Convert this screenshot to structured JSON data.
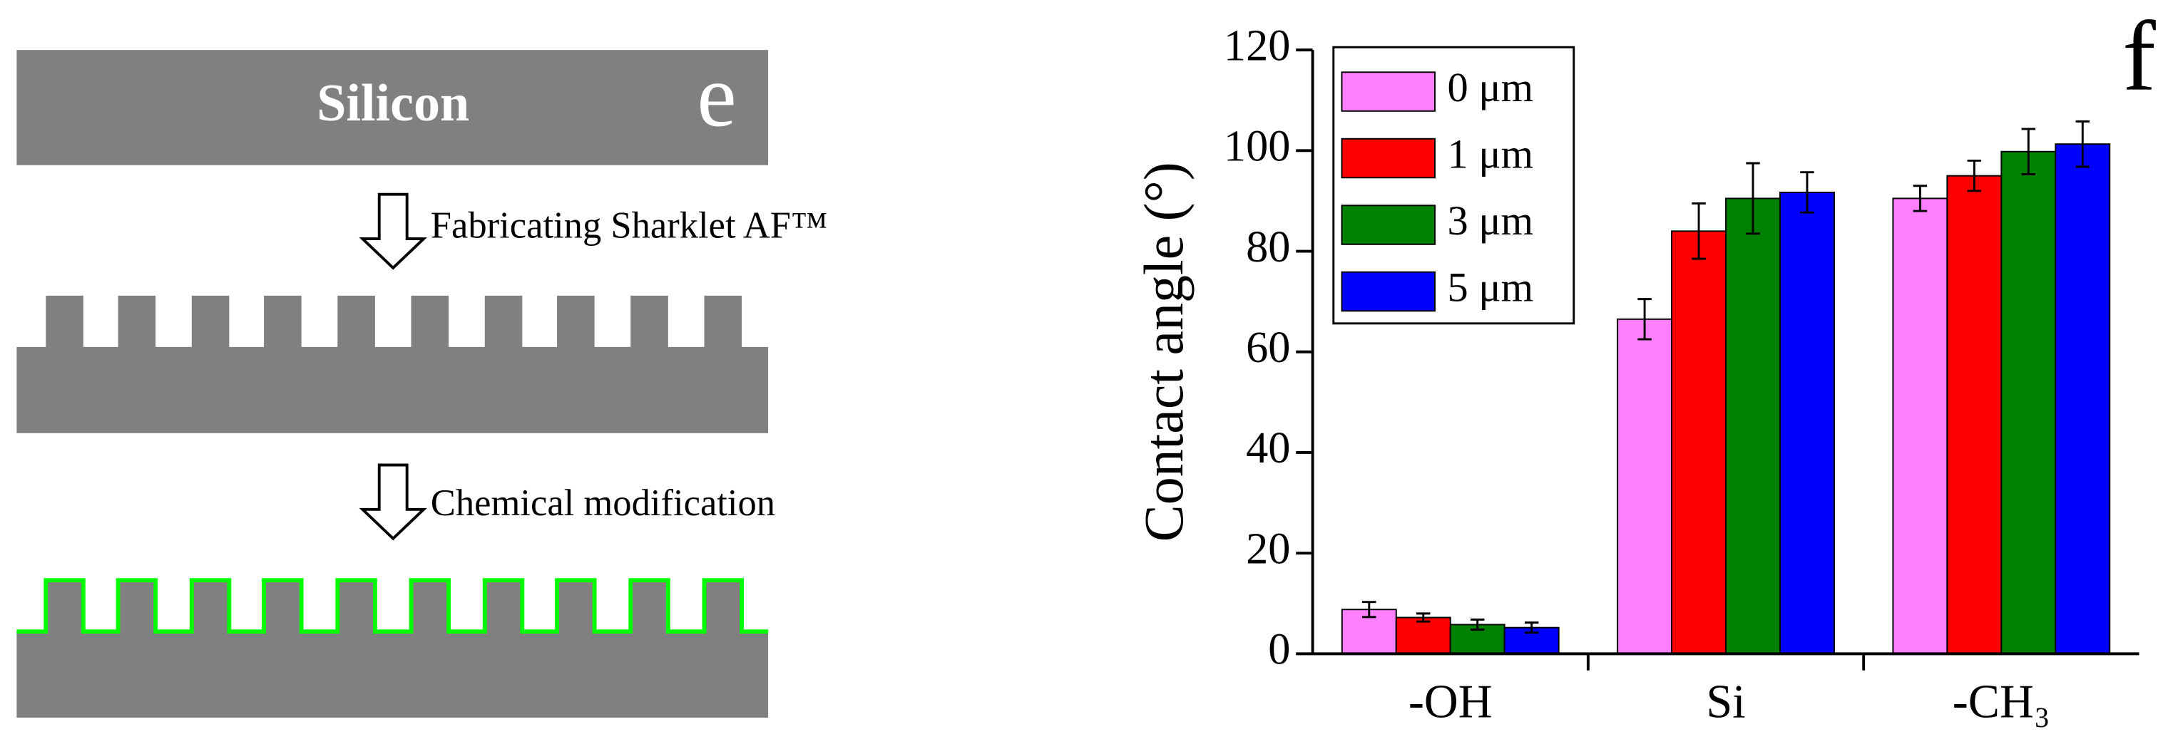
{
  "diagram": {
    "substrate_label": "Silicon",
    "panel_label": "e",
    "steps": [
      "Fabricating Sharklet AF™",
      "Chemical modification"
    ]
  },
  "chart_data": {
    "type": "bar",
    "annotations": [
      "f"
    ],
    "y_label": "Contact angle (°)",
    "categories": [
      "-OH",
      "Si",
      "-CH₃"
    ],
    "series": [
      {
        "name": "0 μm",
        "color": "#ff80ff",
        "values": [
          8.8,
          66.5,
          90.5
        ],
        "errors": [
          1.5,
          4,
          2.5
        ]
      },
      {
        "name": "1 μm",
        "color": "#ff0000",
        "values": [
          7.2,
          84,
          95
        ],
        "errors": [
          0.8,
          5.5,
          3
        ]
      },
      {
        "name": "3 μm",
        "color": "#008000",
        "values": [
          5.8,
          90.5,
          99.8
        ],
        "errors": [
          1,
          7,
          4.5
        ]
      },
      {
        "name": "5 μm",
        "color": "#0000ff",
        "values": [
          5.2,
          91.7,
          101.3
        ],
        "errors": [
          1,
          4,
          4.5
        ]
      }
    ],
    "ylim": [
      0,
      120
    ],
    "yticks": [
      0,
      20,
      40,
      60,
      80,
      100,
      120
    ],
    "legend": "upper left"
  }
}
